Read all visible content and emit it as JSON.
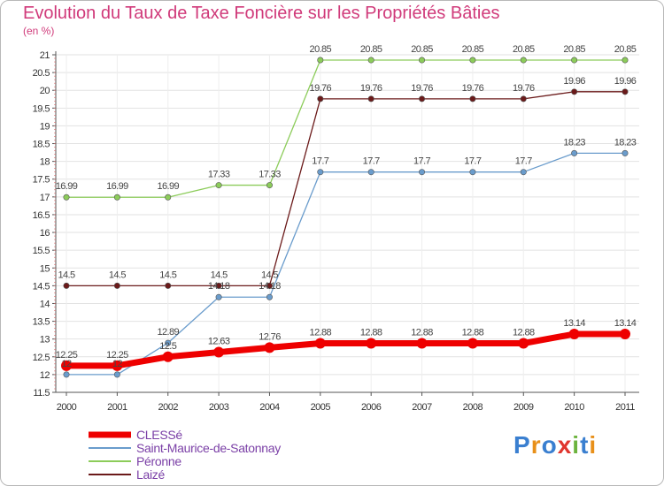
{
  "chart_data": {
    "type": "line",
    "title": "Evolution du Taux de Taxe Foncière sur les Propriétés Bâties",
    "subtitle": "(en %)",
    "x": [
      "2000",
      "2001",
      "2002",
      "2003",
      "2004",
      "2005",
      "2006",
      "2007",
      "2008",
      "2009",
      "2010",
      "2011"
    ],
    "ylim": [
      11.5,
      21
    ],
    "yticks": [
      11.5,
      12,
      12.5,
      13,
      13.5,
      14,
      14.5,
      15,
      15.5,
      16,
      16.5,
      17,
      17.5,
      18,
      18.5,
      19,
      19.5,
      20,
      20.5,
      21
    ],
    "ytick_labels": [
      "11.5",
      "12",
      "12.5",
      "13",
      "13.5",
      "14",
      "14.5",
      "15",
      "15.5",
      "16",
      "16.5",
      "17",
      "17.5",
      "18",
      "18.5",
      "19",
      "19.5",
      "20",
      "20.5",
      "21"
    ],
    "legend_position": "bottom-left",
    "series": [
      {
        "name": "Péronne",
        "color": "#8ccc5a",
        "values": [
          16.99,
          16.99,
          16.99,
          17.33,
          17.33,
          20.85,
          20.85,
          20.85,
          20.85,
          20.85,
          20.85,
          20.85
        ],
        "labels": [
          "16.99",
          "16.99",
          "16.99",
          "17.33",
          "17.33",
          "20.85",
          "20.85",
          "20.85",
          "20.85",
          "20.85",
          "20.85",
          "20.85"
        ]
      },
      {
        "name": "Laizé",
        "color": "#6b1a1a",
        "values": [
          14.5,
          14.5,
          14.5,
          14.5,
          14.5,
          19.76,
          19.76,
          19.76,
          19.76,
          19.76,
          19.96,
          19.96
        ],
        "labels": [
          "14.5",
          "14.5",
          "14.5",
          "14.5",
          "14.5",
          "19.76",
          "19.76",
          "19.76",
          "19.76",
          "19.76",
          "19.96",
          "19.96"
        ]
      },
      {
        "name": "Saint-Maurice-de-Satonnay",
        "color": "#6a9ccc",
        "values": [
          12,
          12,
          12.89,
          14.18,
          14.18,
          17.7,
          17.7,
          17.7,
          17.7,
          17.7,
          18.23,
          18.23
        ],
        "labels": [
          "12",
          "12",
          "12.89",
          "14.18",
          "14.18",
          "17.7",
          "17.7",
          "17.7",
          "17.7",
          "17.7",
          "18.23",
          "18.23"
        ]
      },
      {
        "name": "CLESSé",
        "color": "#ee0000",
        "values": [
          12.25,
          12.25,
          12.5,
          12.63,
          12.76,
          12.88,
          12.88,
          12.88,
          12.88,
          12.88,
          13.14,
          13.14
        ],
        "labels": [
          "12.25",
          "12.25",
          "12.5",
          "12.63",
          "12.76",
          "12.88",
          "12.88",
          "12.88",
          "12.88",
          "12.88",
          "13.14",
          "13.14"
        ]
      }
    ],
    "legend_order": [
      "CLESSé",
      "Saint-Maurice-de-Satonnay",
      "Péronne",
      "Laizé"
    ]
  },
  "logo": {
    "text": "Proxiti"
  }
}
